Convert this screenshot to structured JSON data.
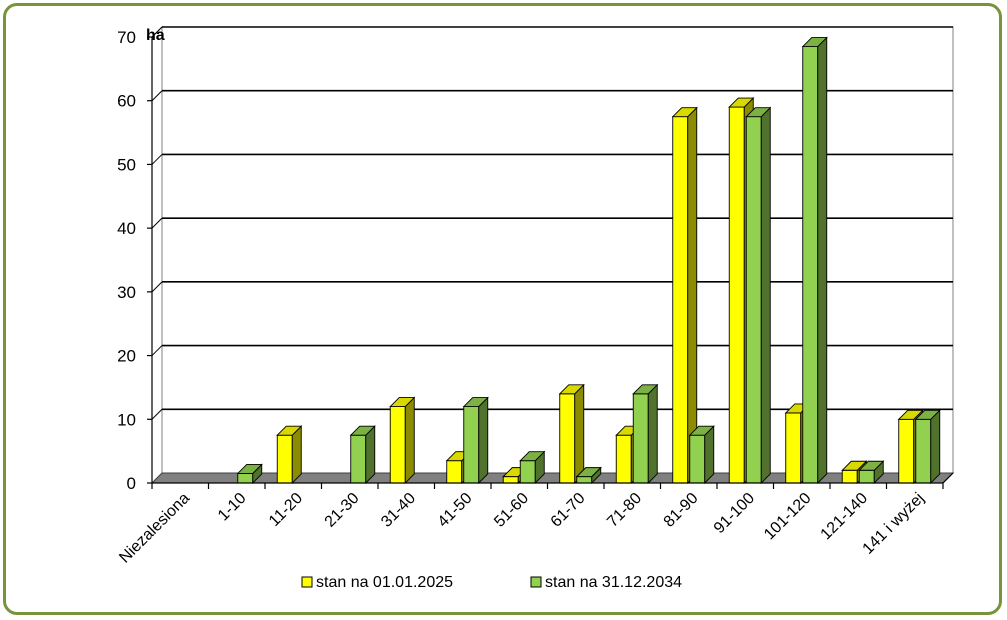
{
  "chart_data": {
    "type": "bar",
    "title": "",
    "unit_label": "ha",
    "xlabel": "",
    "ylabel": "",
    "ylim": [
      0,
      70
    ],
    "yticks": [
      0,
      10,
      20,
      30,
      40,
      50,
      60,
      70
    ],
    "grid": true,
    "legend_position": "bottom",
    "categories": [
      "Niezalesiona",
      "1-10",
      "11-20",
      "21-30",
      "31-40",
      "41-50",
      "51-60",
      "61-70",
      "71-80",
      "81-90",
      "91-100",
      "101-120",
      "121-140",
      "141 i wyżej"
    ],
    "series": [
      {
        "name": "stan na 01.01.2025",
        "color": "#ffff00",
        "values": [
          0,
          0,
          7.5,
          0,
          12,
          3.5,
          1,
          14,
          7.5,
          57.5,
          59,
          11,
          2,
          10
        ]
      },
      {
        "name": "stan na 31.12.2034",
        "color": "#92d050",
        "values": [
          0,
          1.5,
          0,
          7.5,
          0,
          12,
          3.5,
          1,
          14,
          7.5,
          57.5,
          68.5,
          2,
          10
        ]
      }
    ]
  }
}
